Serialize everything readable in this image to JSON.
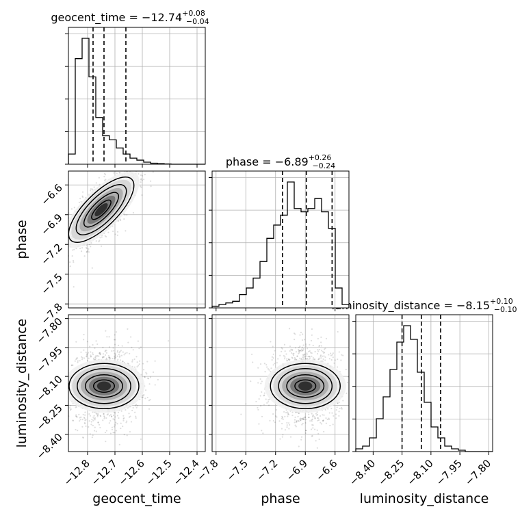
{
  "chart_data": {
    "type": "corner",
    "parameters": [
      "geocent_time",
      "phase",
      "luminosity_distance"
    ],
    "titles": [
      {
        "param": "geocent_time",
        "prefix": "geocent_time = ",
        "median": "−12.74",
        "upper": "+0.08",
        "lower": "−0.04"
      },
      {
        "param": "phase",
        "prefix": "phase = ",
        "median": "−6.89",
        "upper": "+0.26",
        "lower": "−0.24"
      },
      {
        "param": "luminosity_distance",
        "prefix": "luminosity_distance = ",
        "median": "−8.15",
        "upper": "+0.10",
        "lower": "−0.10"
      }
    ],
    "axes": {
      "geocent_time": {
        "range": [
          -12.87,
          -12.37
        ],
        "ticks": [
          -12.8,
          -12.7,
          -12.6,
          -12.5,
          -12.4
        ],
        "tick_labels": [
          "−12.8",
          "−12.7",
          "−12.6",
          "−12.5",
          "−12.4"
        ]
      },
      "phase": {
        "range": [
          -7.84,
          -6.46
        ],
        "ticks": [
          -7.8,
          -7.5,
          -7.2,
          -6.9,
          -6.6
        ],
        "tick_labels": [
          "−7.8",
          "−7.5",
          "−7.2",
          "−6.9",
          "−6.6"
        ]
      },
      "luminosity_distance": {
        "range": [
          -8.49,
          -7.78
        ],
        "ticks": [
          -8.4,
          -8.25,
          -8.1,
          -7.95,
          -7.8
        ],
        "tick_labels": [
          "−8.40",
          "−8.25",
          "−8.10",
          "−7.95",
          "−7.80"
        ]
      }
    },
    "axis_labels": {
      "geocent_time": "geocent_time",
      "phase": "phase",
      "luminosity_distance": "luminosity_distance"
    },
    "histograms": [
      {
        "param": "geocent_time",
        "bins_lo": -12.87,
        "bins_width": 0.025,
        "counts": [
          5,
          52,
          62,
          43,
          23,
          14,
          12,
          8,
          5,
          3,
          2,
          1,
          0.5,
          0.3,
          0.1,
          0,
          0,
          0,
          0,
          0
        ],
        "quantiles": [
          -12.78,
          -12.74,
          -12.66
        ]
      },
      {
        "param": "phase",
        "bins_lo": -7.84,
        "bins_width": 0.069,
        "counts": [
          0.5,
          1,
          1.5,
          2,
          4,
          6,
          9,
          14,
          21,
          25,
          28,
          38,
          30,
          29,
          30,
          33,
          29,
          24,
          6,
          1
        ],
        "quantiles": [
          -7.13,
          -6.89,
          -6.63
        ]
      },
      {
        "param": "luminosity_distance",
        "bins_lo": -8.49,
        "bins_width": 0.0355,
        "counts": [
          1,
          2,
          5,
          12,
          20,
          30,
          40,
          46,
          41,
          29,
          18,
          9,
          5,
          2,
          1,
          0.5,
          0,
          0,
          0,
          0
        ],
        "quantiles": [
          -8.25,
          -8.15,
          -8.05
        ]
      }
    ],
    "scatter_2d": [
      {
        "x": "geocent_time",
        "y": "phase",
        "center": [
          -12.75,
          -6.85
        ],
        "rho": 0.72
      },
      {
        "x": "geocent_time",
        "y": "luminosity_distance",
        "center": [
          -12.74,
          -8.15
        ],
        "rho": 0.05
      },
      {
        "x": "phase",
        "y": "luminosity_distance",
        "center": [
          -6.9,
          -8.15
        ],
        "rho": 0.0
      }
    ],
    "grid": true
  }
}
